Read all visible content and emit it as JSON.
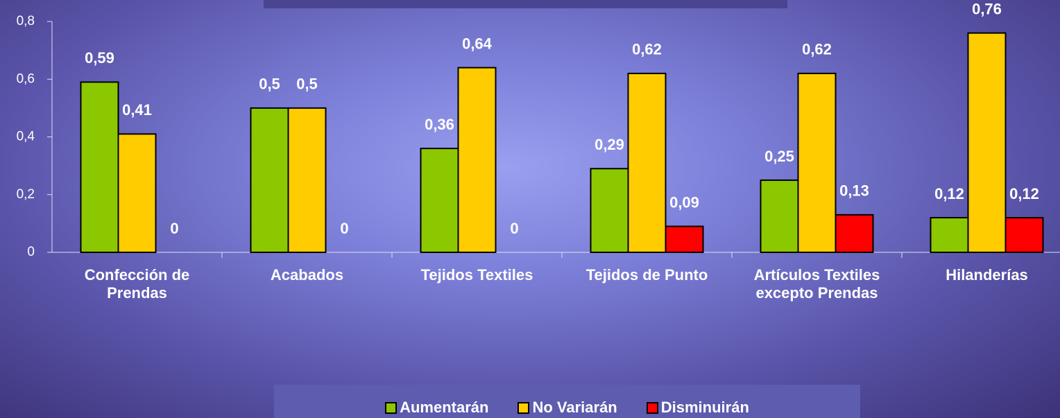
{
  "chart_data": {
    "type": "bar",
    "categories": [
      "Confección de Prendas",
      "Acabados",
      "Tejidos Textiles",
      "Tejidos de Punto",
      "Artículos Textiles excepto Prendas",
      "Hilanderías"
    ],
    "series": [
      {
        "name": "Aumentarán",
        "color": "#8cc800",
        "values": [
          0.59,
          0.5,
          0.36,
          0.29,
          0.25,
          0.12
        ],
        "value_labels": [
          "0,59",
          "0,5",
          "0,36",
          "0,29",
          "0,25",
          "0,12"
        ]
      },
      {
        "name": "No Variarán",
        "color": "#ffcc00",
        "values": [
          0.41,
          0.5,
          0.64,
          0.62,
          0.62,
          0.76
        ],
        "value_labels": [
          "0,41",
          "0,5",
          "0,64",
          "0,62",
          "0,62",
          "0,76"
        ]
      },
      {
        "name": "Disminuirán",
        "color": "#ff0000",
        "values": [
          0,
          0,
          0,
          0.09,
          0.13,
          0.12
        ],
        "value_labels": [
          "0",
          "0",
          "0",
          "0,09",
          "0,13",
          "0,12"
        ]
      }
    ],
    "ylim": [
      0,
      0.8
    ],
    "yticks": [
      0,
      {
        "value": 0.2,
        "label": "0,2"
      },
      {
        "value": 0.4,
        "label": "0,4"
      },
      {
        "value": 0.6,
        "label": "0,6"
      },
      {
        "value": 0.8,
        "label": "0,8"
      }
    ],
    "grid": false,
    "legend": "bottom"
  }
}
